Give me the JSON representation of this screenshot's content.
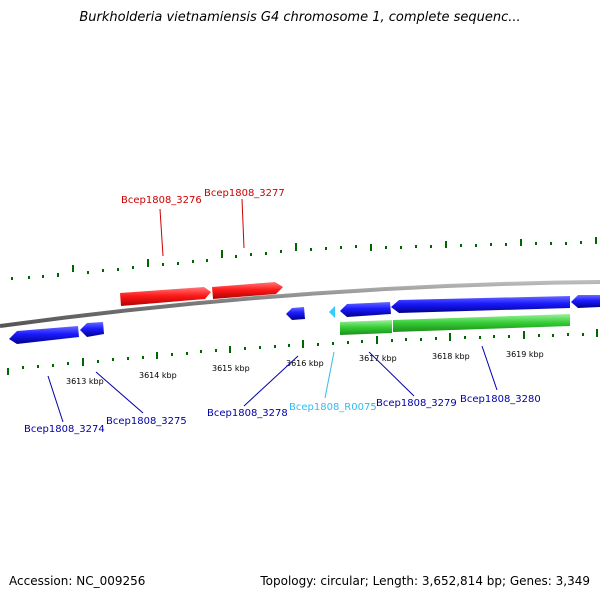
{
  "title": "Burkholderia vietnamiensis G4 chromosome 1, complete sequenc...",
  "footer": {
    "accession": "Accession: NC_009256",
    "summary": "Topology: circular; Length: 3,652,814 bp; Genes: 3,349"
  },
  "colors": {
    "forward_gene": "#ff1a1a",
    "reverse_gene": "#1a1aff",
    "rna_gene": "#33ccff",
    "orf_track": "#33cc33",
    "ticks": "#006600",
    "backbone": "#888888",
    "forward_label": "#cc0000",
    "reverse_label": "#0000aa",
    "rna_label": "#33bbee"
  },
  "kbp_labels": [
    "3613 kbp",
    "3614 kbp",
    "3615 kbp",
    "3616 kbp",
    "3617 kbp",
    "3618 kbp",
    "3619 kbp"
  ],
  "genes": [
    {
      "name": "Bcep1808_3276",
      "strand": "forward",
      "type": "gene"
    },
    {
      "name": "Bcep1808_3277",
      "strand": "forward",
      "type": "gene"
    },
    {
      "name": "Bcep1808_3274",
      "strand": "reverse",
      "type": "gene"
    },
    {
      "name": "Bcep1808_3275",
      "strand": "reverse",
      "type": "gene"
    },
    {
      "name": "Bcep1808_3278",
      "strand": "reverse",
      "type": "gene"
    },
    {
      "name": "Bcep1808_R0075",
      "strand": "reverse",
      "type": "rna"
    },
    {
      "name": "Bcep1808_3279",
      "strand": "reverse",
      "type": "gene"
    },
    {
      "name": "Bcep1808_3280",
      "strand": "reverse",
      "type": "gene"
    }
  ]
}
